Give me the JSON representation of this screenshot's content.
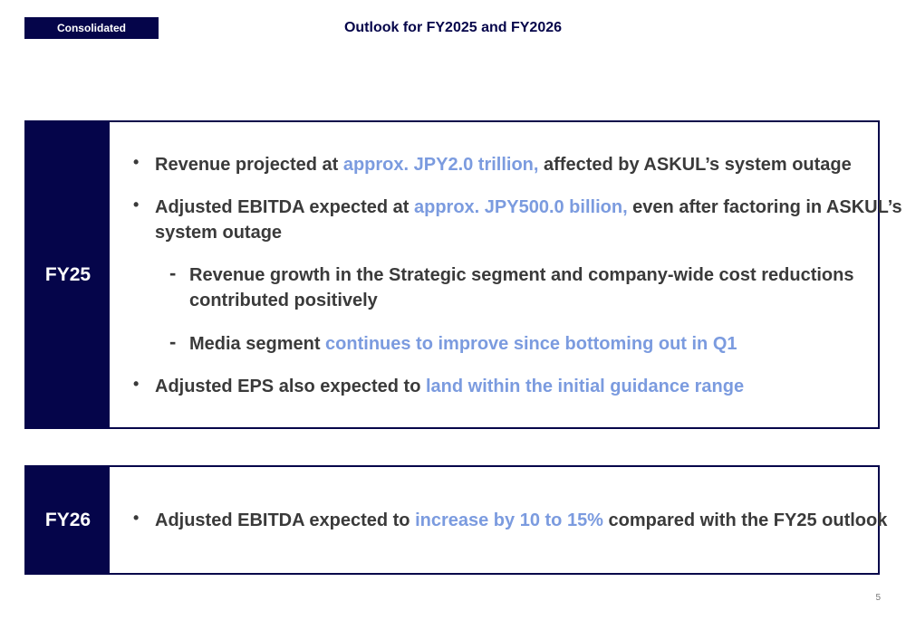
{
  "header": {
    "tag": "Consolidated",
    "title": "Outlook for FY2025 and FY2026"
  },
  "fy25": {
    "label": "FY25",
    "b1": {
      "pre": "Revenue projected at ",
      "hl": "approx. JPY2.0 trillion,",
      "post": " affected by ASKUL’s system outage"
    },
    "b2": {
      "pre": "Adjusted EBITDA expected at ",
      "hl": "approx. JPY500.0 billion,",
      "post": " even after factoring in ASKUL’s",
      "cont": "system outage"
    },
    "s1": {
      "text": "Revenue growth in the Strategic segment and company-wide cost reductions",
      "cont": "contributed positively"
    },
    "s2": {
      "pre": "Media segment ",
      "hl": "continues to improve since bottoming out in Q1"
    },
    "b3": {
      "pre": "Adjusted EPS also expected to ",
      "hl": "land within the initial guidance range"
    }
  },
  "fy26": {
    "label": "FY26",
    "b1": {
      "pre": "Adjusted EBITDA expected to ",
      "hl": "increase by 10 to 15%",
      "post": " compared with the FY25 outlook"
    }
  },
  "footer": {
    "page": "5"
  },
  "colors": {
    "navy": "#05054a",
    "highlight": "#7b9bdf",
    "text": "#3a3a3a"
  }
}
